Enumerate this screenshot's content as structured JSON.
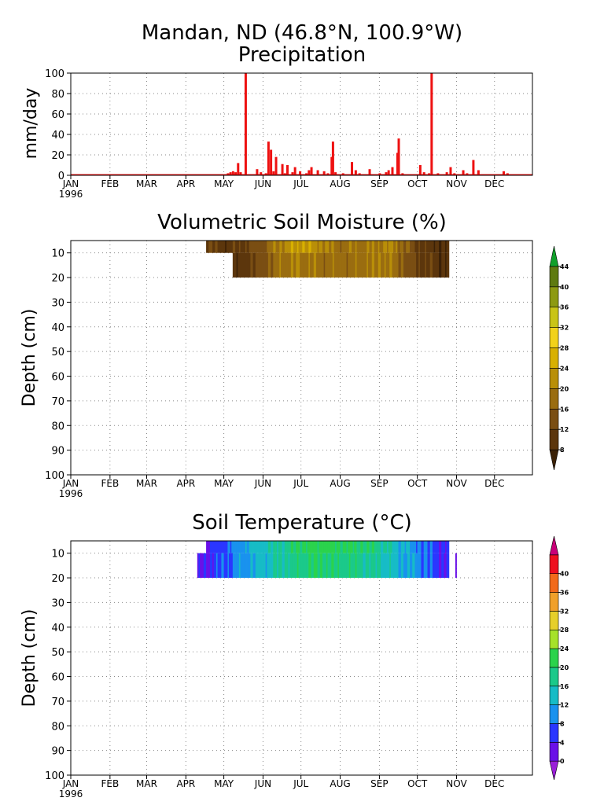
{
  "figure_title": "Mandan, ND  (46.8°N, 100.9°W)",
  "colors": {
    "precip_bar": "#ee1111",
    "frame": "#000000",
    "grid": "#8a8a8a"
  },
  "chart_data": [
    {
      "type": "bar",
      "title": "Precipitation",
      "ylabel": "mm/day",
      "xlabel": "",
      "ylim": [
        0,
        100
      ],
      "yticks": [
        0,
        20,
        40,
        60,
        80,
        100
      ],
      "x_tick_labels": [
        "JAN",
        "FEB",
        "MAR",
        "APR",
        "MAY",
        "JUN",
        "JUL",
        "AUG",
        "SEP",
        "OCT",
        "NOV",
        "DEC"
      ],
      "year_label": "1996",
      "grid": true,
      "series": [
        {
          "color": "#ee1111",
          "days": [
            125,
            127,
            129,
            131,
            133,
            135,
            139,
            148,
            151,
            155,
            157,
            159,
            161,
            163,
            168,
            170,
            172,
            176,
            178,
            182,
            187,
            189,
            191,
            196,
            201,
            204,
            207,
            208,
            210,
            216,
            223,
            226,
            229,
            232,
            237,
            239,
            245,
            247,
            250,
            252,
            255,
            259,
            260,
            263,
            266,
            276,
            277,
            280,
            282,
            284,
            286,
            291,
            298,
            301,
            304,
            307,
            311,
            314,
            319,
            323,
            343,
            346
          ],
          "values": [
            2,
            3,
            4,
            3,
            12,
            3,
            100,
            6,
            3,
            2,
            33,
            25,
            4,
            18,
            11,
            2,
            10,
            3,
            8,
            4,
            2,
            5,
            8,
            5,
            4,
            2,
            18,
            33,
            3,
            2,
            13,
            5,
            2,
            1,
            6,
            1,
            2,
            1,
            3,
            5,
            8,
            22,
            36,
            2,
            1,
            1,
            10,
            3,
            1,
            2,
            100,
            2,
            3,
            8,
            2,
            1,
            5,
            2,
            15,
            5,
            4,
            2
          ],
          "days_note": "day of year 1996"
        }
      ]
    },
    {
      "type": "heatmap",
      "title": "Volumetric Soil Moisture (%)",
      "ylabel": "Depth (cm)",
      "xlabel": "",
      "ylim": [
        100,
        5
      ],
      "yticks": [
        10,
        20,
        30,
        40,
        50,
        60,
        70,
        80,
        90,
        100
      ],
      "x_tick_labels": [
        "JAN",
        "FEB",
        "MAR",
        "APR",
        "MAY",
        "JUN",
        "JUL",
        "AUG",
        "SEP",
        "OCT",
        "NOV",
        "DEC"
      ],
      "year_label": "1996",
      "grid": true,
      "colorbar": {
        "levels": [
          8,
          12,
          16,
          20,
          24,
          28,
          32,
          36,
          40,
          44
        ],
        "colors": [
          "#3b2106",
          "#5c360c",
          "#7a4e13",
          "#9a6d10",
          "#b98f08",
          "#d8b000",
          "#f2d21a",
          "#c9c417",
          "#8d9a12",
          "#5e7a10",
          "#10a02a"
        ],
        "extend": "both"
      },
      "depth_layers": [
        {
          "top": 5,
          "bottom": 10,
          "start_day": 108,
          "end_day": 300,
          "profile_days": [
            108,
            120,
            135,
            150,
            160,
            170,
            185,
            200,
            215,
            230,
            245,
            255,
            265,
            275,
            285,
            295,
            300
          ],
          "profile_values": [
            13,
            10,
            11,
            14,
            18,
            22,
            24,
            21,
            18,
            19,
            20,
            21,
            16,
            12,
            10,
            9,
            8
          ]
        },
        {
          "top": 10,
          "bottom": 20,
          "start_day": 129,
          "end_day": 300,
          "profile_days": [
            129,
            135,
            145,
            155,
            165,
            175,
            190,
            205,
            220,
            235,
            250,
            260,
            270,
            280,
            290,
            300
          ],
          "profile_values": [
            8,
            9,
            12,
            15,
            18,
            20,
            19,
            18,
            18,
            19,
            20,
            17,
            13,
            11,
            10,
            9
          ]
        }
      ]
    },
    {
      "type": "heatmap",
      "title": "Soil Temperature (°C)",
      "ylabel": "Depth (cm)",
      "xlabel": "",
      "ylim": [
        100,
        5
      ],
      "yticks": [
        10,
        20,
        30,
        40,
        50,
        60,
        70,
        80,
        90,
        100
      ],
      "x_tick_labels": [
        "JAN",
        "FEB",
        "MAR",
        "APR",
        "MAY",
        "JUN",
        "JUL",
        "AUG",
        "SEP",
        "OCT",
        "NOV",
        "DEC"
      ],
      "year_label": "1996",
      "grid": true,
      "colorbar": {
        "levels": [
          0,
          4,
          8,
          12,
          16,
          20,
          24,
          28,
          32,
          36,
          40
        ],
        "colors": [
          "#9a1fd8",
          "#6a10e8",
          "#2a36ff",
          "#1992ee",
          "#17bcc6",
          "#1bc98a",
          "#2bd34c",
          "#a6e22a",
          "#e6cf2a",
          "#f0a02a",
          "#f26a1a",
          "#ee0f1f",
          "#c80078"
        ],
        "extend": "both"
      },
      "depth_layers": [
        {
          "top": 5,
          "bottom": 10,
          "start_day": 108,
          "end_day": 300,
          "profile_days": [
            108,
            118,
            128,
            140,
            155,
            170,
            185,
            200,
            215,
            230,
            245,
            260,
            275,
            290,
            300
          ],
          "profile_values": [
            3,
            6,
            9,
            12,
            15,
            18,
            21,
            22,
            21,
            20,
            18,
            14,
            10,
            6,
            4
          ]
        },
        {
          "top": 10,
          "bottom": 20,
          "start_day": 101,
          "end_day": 300,
          "profile_days": [
            101,
            112,
            125,
            140,
            155,
            170,
            185,
            200,
            215,
            230,
            245,
            260,
            275,
            290,
            300
          ],
          "profile_values": [
            2,
            5,
            8,
            11,
            14,
            17,
            19,
            20,
            19,
            18,
            16,
            13,
            10,
            6,
            4
          ]
        },
        {
          "top": 10,
          "bottom": 20,
          "start_day": 305,
          "end_day": 306,
          "profile_days": [
            305,
            306
          ],
          "profile_values": [
            1,
            1
          ]
        }
      ]
    }
  ]
}
